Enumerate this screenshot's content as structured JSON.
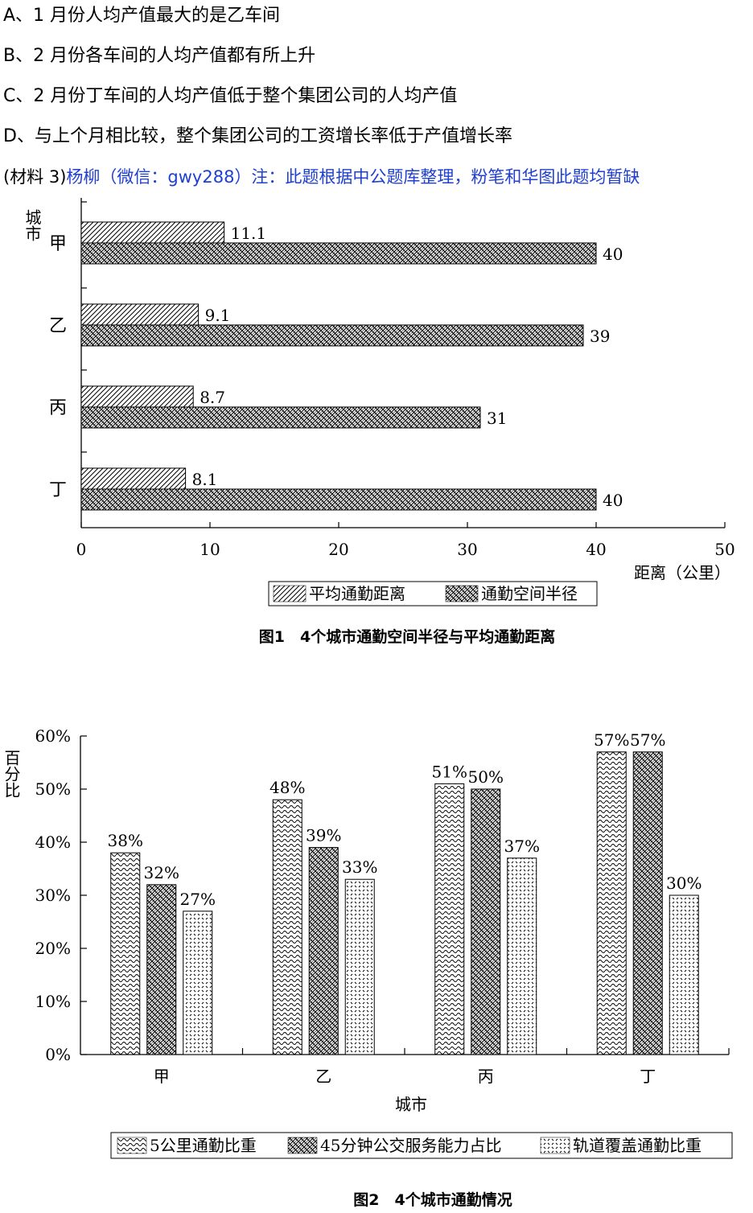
{
  "options": [
    {
      "label": "A、1 月份人均产值最大的是乙车间"
    },
    {
      "label": "B、2 月份各车间的人均产值都有所上升"
    },
    {
      "label": "C、2 月份丁车间的人均产值低于整个集团公司的人均产值"
    },
    {
      "label": "D、与上个月相比较，整个集团公司的工资增长率低于产值增长率"
    }
  ],
  "note": {
    "prefix": "(材料 3)",
    "text": "杨柳（微信：gwy288）注：此题根据中公题库整理，粉笔和华图此题均暂缺"
  },
  "colors": {
    "note_text": "#1f3fd0",
    "ink": "#000000"
  },
  "chart_data": [
    {
      "type": "bar",
      "orientation": "horizontal",
      "title": "图1　4个城市通勤空间半径与平均通勤距离",
      "ylabel": "城市",
      "xlabel": "距离（公里）",
      "categories": [
        "甲",
        "乙",
        "丙",
        "丁"
      ],
      "xlim": [
        0,
        50
      ],
      "xticks": [
        "0",
        "10",
        "20",
        "30",
        "40",
        "50"
      ],
      "series": [
        {
          "name": "平均通勤距离",
          "values": [
            11.1,
            9.1,
            8.7,
            8.1
          ],
          "labels": [
            "11.1",
            "9.1",
            "8.7",
            "8.1"
          ],
          "pattern": "diagonal-hatch"
        },
        {
          "name": "通勤空间半径",
          "values": [
            40,
            39,
            31,
            40
          ],
          "labels": [
            "40",
            "39",
            "31",
            "40"
          ],
          "pattern": "crosshatch"
        }
      ],
      "legend": "bottom-right",
      "grid": false
    },
    {
      "type": "bar",
      "orientation": "vertical",
      "title": "图2　4个城市通勤情况",
      "ylabel": "百分比",
      "xlabel": "城市",
      "categories": [
        "甲",
        "乙",
        "丙",
        "丁"
      ],
      "ylim": [
        0,
        60
      ],
      "yticks": [
        "0%",
        "10%",
        "20%",
        "30%",
        "40%",
        "50%",
        "60%"
      ],
      "series": [
        {
          "name": "5公里通勤比重",
          "values": [
            38,
            48,
            51,
            57
          ],
          "labels": [
            "38%",
            "48%",
            "51%",
            "57%"
          ],
          "pattern": "wave"
        },
        {
          "name": "45分钟公交服务能力占比",
          "values": [
            32,
            39,
            50,
            57
          ],
          "labels": [
            "32%",
            "39%",
            "50%",
            "57%"
          ],
          "pattern": "crosshatch"
        },
        {
          "name": "轨道覆盖通勤比重",
          "values": [
            27,
            33,
            37,
            30
          ],
          "labels": [
            "27%",
            "33%",
            "37%",
            "30%"
          ],
          "pattern": "dots"
        }
      ],
      "legend": "bottom",
      "grid": false
    }
  ]
}
